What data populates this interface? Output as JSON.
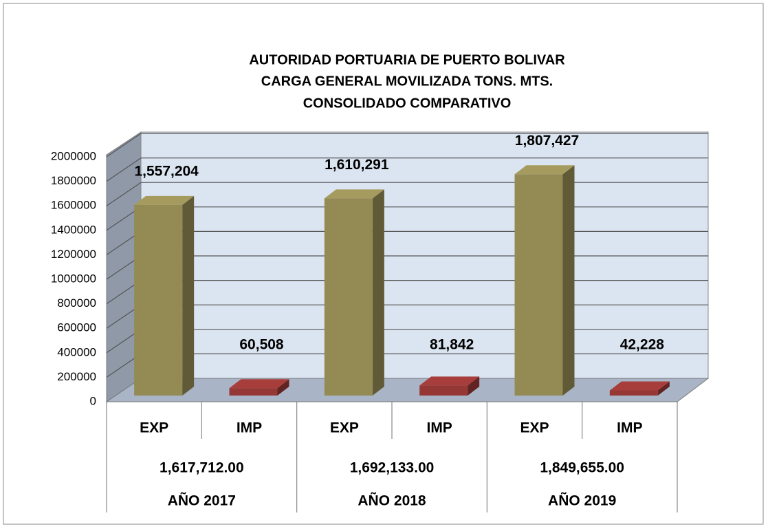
{
  "chart_data": {
    "type": "bar",
    "title": [
      "AUTORIDAD PORTUARIA DE PUERTO BOLIVAR",
      "CARGA GENERAL MOVILIZADA TONS. MTS.",
      "CONSOLIDADO COMPARATIVO"
    ],
    "categories": [
      "EXP",
      "IMP",
      "EXP",
      "IMP",
      "EXP",
      "IMP"
    ],
    "values": [
      1557204,
      60508,
      1610291,
      81842,
      1807427,
      42228
    ],
    "value_labels": [
      "1,557,204",
      "60,508",
      "1,610,291",
      "81,842",
      "1,807,427",
      "42,228"
    ],
    "colors": [
      "#948a54",
      "#953735",
      "#948a54",
      "#953735",
      "#948a54",
      "#953735"
    ],
    "groups": [
      "AÑO 2017",
      "AÑO 2018",
      "AÑO 2019"
    ],
    "group_totals": [
      1617712,
      1692133,
      1849655
    ],
    "group_total_labels": [
      "1,617,712.00",
      "1,692,133.00",
      "1,849,655.00"
    ],
    "ylim": [
      0,
      2000000
    ],
    "yticks": [
      0,
      200000,
      400000,
      600000,
      800000,
      1000000,
      1200000,
      1400000,
      1600000,
      1800000,
      2000000
    ],
    "grid": true
  }
}
